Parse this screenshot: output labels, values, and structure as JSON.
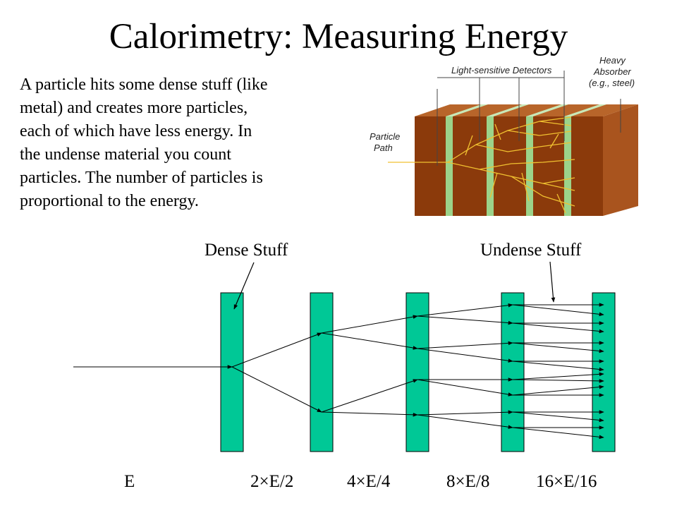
{
  "title": "Calorimetry: Measuring Energy",
  "description_lines": [
    "A particle hits some dense stuff (like",
    "metal) and creates more particles,",
    "each of which have less energy.  In",
    "the undense material you count",
    "particles.  The number of particles is",
    "proportional to the energy."
  ],
  "illustration": {
    "detectors_label": "Light-sensitive Detectors",
    "absorber_label_lines": [
      "Heavy",
      "Absorber",
      "(e.g., steel)"
    ],
    "path_label_lines": [
      "Particle",
      "Path"
    ],
    "colors": {
      "absorber": "#8b3a0b",
      "absorber_top": "#a9541e",
      "detector": "#9cd38a",
      "shower": "#f0c030"
    }
  },
  "diagram": {
    "dense_label": "Dense Stuff",
    "undense_label": "Undense Stuff",
    "energy_labels": [
      "E",
      "2×E/2",
      "4×E/4",
      "8×E/8",
      "16×E/16"
    ],
    "block_color": "#00c896"
  }
}
